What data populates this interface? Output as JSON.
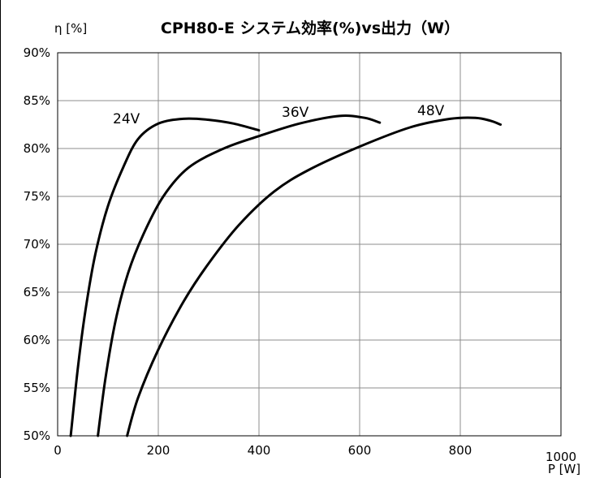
{
  "chart_data": {
    "type": "line",
    "title": "CPH80-E システム効率(%)vs出力（W）",
    "ylabel": "η [%]",
    "xlabel": "P [W]",
    "xlim": [
      0,
      1000
    ],
    "ylim": [
      50,
      90
    ],
    "x_ticks": [
      "0",
      "200",
      "400",
      "600",
      "800",
      "1000"
    ],
    "y_ticks": [
      "50%",
      "55%",
      "60%",
      "65%",
      "70%",
      "75%",
      "80%",
      "85%",
      "90%"
    ],
    "grid": true,
    "series": [
      {
        "name": "24V",
        "points": [
          [
            26,
            50
          ],
          [
            40,
            57
          ],
          [
            55,
            63
          ],
          [
            75,
            69
          ],
          [
            100,
            74
          ],
          [
            130,
            78
          ],
          [
            160,
            81
          ],
          [
            200,
            82.6
          ],
          [
            250,
            83.1
          ],
          [
            300,
            83
          ],
          [
            350,
            82.6
          ],
          [
            400,
            81.9
          ]
        ]
      },
      {
        "name": "36V",
        "points": [
          [
            80,
            50
          ],
          [
            95,
            56
          ],
          [
            115,
            62
          ],
          [
            140,
            67
          ],
          [
            170,
            71
          ],
          [
            210,
            75
          ],
          [
            260,
            78
          ],
          [
            330,
            80
          ],
          [
            400,
            81.3
          ],
          [
            480,
            82.6
          ],
          [
            560,
            83.4
          ],
          [
            610,
            83.2
          ],
          [
            640,
            82.7
          ]
        ]
      },
      {
        "name": "48V",
        "points": [
          [
            138,
            50
          ],
          [
            160,
            54
          ],
          [
            200,
            59
          ],
          [
            250,
            64
          ],
          [
            300,
            68
          ],
          [
            360,
            72
          ],
          [
            430,
            75.5
          ],
          [
            500,
            77.8
          ],
          [
            600,
            80.2
          ],
          [
            700,
            82.2
          ],
          [
            780,
            83.1
          ],
          [
            830,
            83.2
          ],
          [
            860,
            82.9
          ],
          [
            880,
            82.5
          ]
        ]
      }
    ]
  }
}
